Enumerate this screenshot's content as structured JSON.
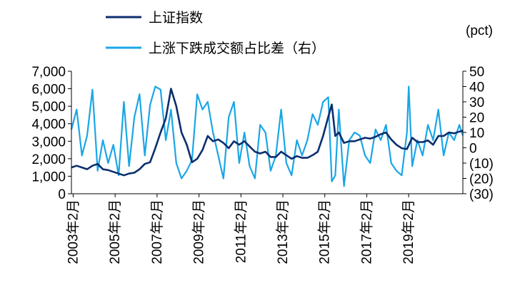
{
  "chart_data": {
    "type": "line",
    "title": "",
    "xlabel": "",
    "x_range": [
      "2003-01-01",
      "2021-09-30"
    ],
    "x_ticks": [
      "2003年2月",
      "2005年2月",
      "2007年2月",
      "2009年2月",
      "2011年2月",
      "2013年2月",
      "2015年2月",
      "2017年2月",
      "2019年2月"
    ],
    "y_left": {
      "ylim": [
        0,
        7000
      ],
      "ticks": [
        "0",
        "1,000",
        "2,000",
        "3,000",
        "4,000",
        "5,000",
        "6,000",
        "7,000"
      ]
    },
    "y_right": {
      "unit": "(pct)",
      "ylim": [
        -30,
        50
      ],
      "ticks": [
        "(30)",
        "(20)",
        "(10)",
        "0",
        "10",
        "20",
        "30",
        "40",
        "50"
      ]
    },
    "legend_position": "top-left",
    "grid": false,
    "series": [
      {
        "name": "上证指数",
        "axis": "left",
        "color": "#0b2e6e",
        "points": [
          [
            "2003-01",
            1500
          ],
          [
            "2003-04",
            1600
          ],
          [
            "2003-07",
            1500
          ],
          [
            "2003-10",
            1400
          ],
          [
            "2004-01",
            1600
          ],
          [
            "2004-04",
            1700
          ],
          [
            "2004-07",
            1400
          ],
          [
            "2004-10",
            1350
          ],
          [
            "2005-01",
            1250
          ],
          [
            "2005-04",
            1150
          ],
          [
            "2005-07",
            1050
          ],
          [
            "2005-10",
            1150
          ],
          [
            "2006-01",
            1200
          ],
          [
            "2006-04",
            1400
          ],
          [
            "2006-07",
            1700
          ],
          [
            "2006-10",
            1800
          ],
          [
            "2007-01",
            2600
          ],
          [
            "2007-04",
            3500
          ],
          [
            "2007-07",
            4300
          ],
          [
            "2007-10",
            6000
          ],
          [
            "2008-01",
            5000
          ],
          [
            "2008-04",
            3500
          ],
          [
            "2008-07",
            2800
          ],
          [
            "2008-10",
            1800
          ],
          [
            "2009-01",
            2000
          ],
          [
            "2009-04",
            2500
          ],
          [
            "2009-07",
            3300
          ],
          [
            "2009-10",
            3000
          ],
          [
            "2010-01",
            3100
          ],
          [
            "2010-04",
            2900
          ],
          [
            "2010-07",
            2600
          ],
          [
            "2010-10",
            3000
          ],
          [
            "2011-01",
            2800
          ],
          [
            "2011-04",
            3000
          ],
          [
            "2011-07",
            2700
          ],
          [
            "2011-10",
            2400
          ],
          [
            "2012-01",
            2300
          ],
          [
            "2012-04",
            2400
          ],
          [
            "2012-07",
            2100
          ],
          [
            "2012-10",
            2100
          ],
          [
            "2013-01",
            2400
          ],
          [
            "2013-04",
            2200
          ],
          [
            "2013-07",
            2000
          ],
          [
            "2013-10",
            2150
          ],
          [
            "2014-01",
            2050
          ],
          [
            "2014-04",
            2050
          ],
          [
            "2014-07",
            2200
          ],
          [
            "2014-10",
            2400
          ],
          [
            "2015-01",
            3300
          ],
          [
            "2015-04",
            4400
          ],
          [
            "2015-06",
            5100
          ],
          [
            "2015-08",
            3300
          ],
          [
            "2015-10",
            3500
          ],
          [
            "2016-01",
            2900
          ],
          [
            "2016-04",
            3000
          ],
          [
            "2016-07",
            3000
          ],
          [
            "2016-10",
            3100
          ],
          [
            "2017-01",
            3200
          ],
          [
            "2017-04",
            3150
          ],
          [
            "2017-07",
            3250
          ],
          [
            "2017-10",
            3400
          ],
          [
            "2018-01",
            3500
          ],
          [
            "2018-04",
            3100
          ],
          [
            "2018-07",
            2800
          ],
          [
            "2018-10",
            2600
          ],
          [
            "2019-01",
            2550
          ],
          [
            "2019-04",
            3200
          ],
          [
            "2019-07",
            2950
          ],
          [
            "2019-10",
            2950
          ],
          [
            "2020-01",
            3050
          ],
          [
            "2020-04",
            2800
          ],
          [
            "2020-07",
            3300
          ],
          [
            "2020-10",
            3300
          ],
          [
            "2021-01",
            3500
          ],
          [
            "2021-04",
            3450
          ],
          [
            "2021-07",
            3550
          ],
          [
            "2021-09",
            3600
          ]
        ]
      },
      {
        "name": "上涨下跌成交额占比差（右）",
        "axis": "right",
        "color": "#1aa6e6",
        "points": [
          [
            "2003-01",
            12
          ],
          [
            "2003-04",
            25
          ],
          [
            "2003-07",
            -5
          ],
          [
            "2003-10",
            8
          ],
          [
            "2004-01",
            38
          ],
          [
            "2004-04",
            -15
          ],
          [
            "2004-07",
            5
          ],
          [
            "2004-10",
            -10
          ],
          [
            "2005-01",
            2
          ],
          [
            "2005-04",
            -18
          ],
          [
            "2005-07",
            30
          ],
          [
            "2005-10",
            -12
          ],
          [
            "2006-01",
            20
          ],
          [
            "2006-04",
            35
          ],
          [
            "2006-07",
            -5
          ],
          [
            "2006-10",
            28
          ],
          [
            "2007-01",
            40
          ],
          [
            "2007-04",
            38
          ],
          [
            "2007-07",
            5
          ],
          [
            "2007-10",
            25
          ],
          [
            "2008-01",
            -10
          ],
          [
            "2008-04",
            -20
          ],
          [
            "2008-07",
            -15
          ],
          [
            "2008-10",
            -8
          ],
          [
            "2009-01",
            35
          ],
          [
            "2009-04",
            25
          ],
          [
            "2009-07",
            30
          ],
          [
            "2009-10",
            10
          ],
          [
            "2010-01",
            -5
          ],
          [
            "2010-04",
            -20
          ],
          [
            "2010-07",
            20
          ],
          [
            "2010-10",
            30
          ],
          [
            "2011-01",
            -10
          ],
          [
            "2011-04",
            10
          ],
          [
            "2011-07",
            -12
          ],
          [
            "2011-10",
            -20
          ],
          [
            "2012-01",
            15
          ],
          [
            "2012-04",
            10
          ],
          [
            "2012-07",
            -15
          ],
          [
            "2012-10",
            -5
          ],
          [
            "2013-01",
            25
          ],
          [
            "2013-04",
            -10
          ],
          [
            "2013-07",
            -18
          ],
          [
            "2013-10",
            5
          ],
          [
            "2014-01",
            -5
          ],
          [
            "2014-04",
            5
          ],
          [
            "2014-07",
            22
          ],
          [
            "2014-10",
            15
          ],
          [
            "2015-01",
            30
          ],
          [
            "2015-04",
            33
          ],
          [
            "2015-06",
            -22
          ],
          [
            "2015-08",
            -18
          ],
          [
            "2015-10",
            25
          ],
          [
            "2016-01",
            -25
          ],
          [
            "2016-04",
            5
          ],
          [
            "2016-07",
            10
          ],
          [
            "2016-10",
            8
          ],
          [
            "2017-01",
            -5
          ],
          [
            "2017-04",
            -10
          ],
          [
            "2017-07",
            12
          ],
          [
            "2017-10",
            5
          ],
          [
            "2018-01",
            15
          ],
          [
            "2018-04",
            -10
          ],
          [
            "2018-07",
            -15
          ],
          [
            "2018-10",
            -18
          ],
          [
            "2019-01",
            10
          ],
          [
            "2019-02",
            40
          ],
          [
            "2019-04",
            -12
          ],
          [
            "2019-07",
            5
          ],
          [
            "2019-10",
            -5
          ],
          [
            "2020-01",
            15
          ],
          [
            "2020-04",
            5
          ],
          [
            "2020-07",
            25
          ],
          [
            "2020-10",
            -5
          ],
          [
            "2021-01",
            10
          ],
          [
            "2021-04",
            5
          ],
          [
            "2021-07",
            15
          ],
          [
            "2021-09",
            8
          ]
        ]
      }
    ]
  }
}
